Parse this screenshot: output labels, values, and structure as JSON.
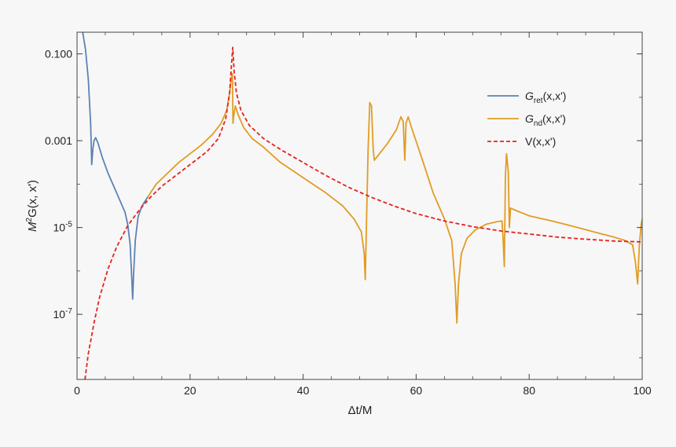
{
  "chart_data": {
    "type": "line",
    "xlabel": "Δt/M",
    "ylabel": {
      "pre": "M",
      "sup": "2",
      "post": "G(x, x')"
    },
    "xlim": [
      0,
      100
    ],
    "ylim_log10": [
      -8.5,
      -0.5
    ],
    "yscale": "log",
    "grid": false,
    "legend_position": "top-right",
    "xticks": [
      0,
      20,
      40,
      60,
      80,
      100
    ],
    "yticks": [
      {
        "exp": -1,
        "label": "0.100"
      },
      {
        "exp": -3,
        "label": "0.001"
      },
      {
        "exp": -5,
        "label": "10",
        "sup": "-5"
      },
      {
        "exp": -7,
        "label": "10",
        "sup": "-7"
      }
    ],
    "series": [
      {
        "name": {
          "main": "G",
          "sub": "ret",
          "tail": "(x,x')"
        },
        "color": "#5e81b5",
        "dash": "solid",
        "points": [
          [
            1.0,
            -0.5
          ],
          [
            1.5,
            -0.9
          ],
          [
            2.0,
            -1.6
          ],
          [
            2.4,
            -2.6
          ],
          [
            2.6,
            -3.55
          ],
          [
            2.8,
            -3.2
          ],
          [
            3.0,
            -3.0
          ],
          [
            3.3,
            -2.93
          ],
          [
            3.7,
            -3.05
          ],
          [
            4.5,
            -3.4
          ],
          [
            5.5,
            -3.75
          ],
          [
            6.5,
            -4.05
          ],
          [
            7.5,
            -4.35
          ],
          [
            8.5,
            -4.65
          ],
          [
            9.0,
            -4.95
          ],
          [
            9.4,
            -5.4
          ],
          [
            9.7,
            -6.2
          ],
          [
            9.85,
            -6.65
          ],
          [
            10.0,
            -6.1
          ],
          [
            10.3,
            -5.3
          ],
          [
            10.8,
            -4.75
          ],
          [
            11.5,
            -4.5
          ],
          [
            12.5,
            -4.3
          ]
        ]
      },
      {
        "name": {
          "main": "G",
          "sub": "nd",
          "tail": "(x,x')"
        },
        "color": "#e19c24",
        "dash": "solid",
        "points": [
          [
            12.5,
            -4.3
          ],
          [
            14,
            -4.0
          ],
          [
            16,
            -3.75
          ],
          [
            18,
            -3.5
          ],
          [
            20,
            -3.3
          ],
          [
            22,
            -3.1
          ],
          [
            24,
            -2.85
          ],
          [
            25.5,
            -2.6
          ],
          [
            26.5,
            -2.3
          ],
          [
            27.0,
            -1.9
          ],
          [
            27.3,
            -1.55
          ],
          [
            27.5,
            -1.45
          ],
          [
            27.6,
            -2.6
          ],
          [
            27.7,
            -2.45
          ],
          [
            28.0,
            -2.2
          ],
          [
            28.5,
            -2.4
          ],
          [
            29.5,
            -2.7
          ],
          [
            31,
            -2.95
          ],
          [
            33,
            -3.15
          ],
          [
            36,
            -3.5
          ],
          [
            40,
            -3.85
          ],
          [
            44,
            -4.2
          ],
          [
            47,
            -4.5
          ],
          [
            49,
            -4.8
          ],
          [
            50.3,
            -5.1
          ],
          [
            50.8,
            -5.6
          ],
          [
            51.0,
            -6.2
          ],
          [
            51.2,
            -5.0
          ],
          [
            51.5,
            -3.2
          ],
          [
            51.8,
            -2.12
          ],
          [
            52.1,
            -2.2
          ],
          [
            52.4,
            -3.2
          ],
          [
            52.6,
            -3.45
          ],
          [
            53.5,
            -3.3
          ],
          [
            55,
            -3.05
          ],
          [
            56.5,
            -2.75
          ],
          [
            57.3,
            -2.45
          ],
          [
            57.7,
            -2.55
          ],
          [
            58.0,
            -3.45
          ],
          [
            58.2,
            -2.6
          ],
          [
            58.6,
            -2.45
          ],
          [
            59.2,
            -2.7
          ],
          [
            61,
            -3.4
          ],
          [
            63,
            -4.2
          ],
          [
            65,
            -4.8
          ],
          [
            66.3,
            -5.3
          ],
          [
            66.9,
            -6.3
          ],
          [
            67.2,
            -7.2
          ],
          [
            67.5,
            -6.3
          ],
          [
            68.0,
            -5.6
          ],
          [
            69.0,
            -5.25
          ],
          [
            70.5,
            -5.05
          ],
          [
            72.5,
            -4.92
          ],
          [
            74.5,
            -4.86
          ],
          [
            75.2,
            -4.85
          ],
          [
            75.4,
            -5.3
          ],
          [
            75.6,
            -5.9
          ],
          [
            75.8,
            -3.8
          ],
          [
            76.0,
            -3.3
          ],
          [
            76.3,
            -3.7
          ],
          [
            76.5,
            -5.0
          ],
          [
            76.7,
            -4.55
          ],
          [
            77.5,
            -4.6
          ],
          [
            80,
            -4.73
          ],
          [
            84,
            -4.85
          ],
          [
            88,
            -4.98
          ],
          [
            92,
            -5.12
          ],
          [
            95,
            -5.22
          ],
          [
            97,
            -5.3
          ],
          [
            98.3,
            -5.4
          ],
          [
            98.8,
            -5.8
          ],
          [
            99.2,
            -6.3
          ],
          [
            99.5,
            -5.4
          ],
          [
            99.8,
            -4.95
          ],
          [
            100,
            -4.8
          ]
        ]
      },
      {
        "name": {
          "main": "V(x,x')",
          "sub": "",
          "tail": ""
        },
        "color": "#e8211f",
        "dash": "dashed",
        "points": [
          [
            1.4,
            -8.5
          ],
          [
            2.0,
            -7.9
          ],
          [
            3.0,
            -7.2
          ],
          [
            4.0,
            -6.6
          ],
          [
            5.5,
            -5.95
          ],
          [
            7.0,
            -5.45
          ],
          [
            9.0,
            -4.95
          ],
          [
            11.0,
            -4.6
          ],
          [
            13.0,
            -4.3
          ],
          [
            15.0,
            -4.05
          ],
          [
            17.0,
            -3.85
          ],
          [
            19.0,
            -3.65
          ],
          [
            21.0,
            -3.45
          ],
          [
            23.0,
            -3.25
          ],
          [
            25.0,
            -2.95
          ],
          [
            26.3,
            -2.5
          ],
          [
            27.0,
            -1.9
          ],
          [
            27.3,
            -1.3
          ],
          [
            27.55,
            -0.85
          ],
          [
            27.8,
            -1.4
          ],
          [
            28.2,
            -1.9
          ],
          [
            29.0,
            -2.3
          ],
          [
            30.5,
            -2.65
          ],
          [
            33,
            -2.95
          ],
          [
            36,
            -3.2
          ],
          [
            40,
            -3.5
          ],
          [
            44,
            -3.8
          ],
          [
            48,
            -4.07
          ],
          [
            52,
            -4.3
          ],
          [
            56,
            -4.5
          ],
          [
            60,
            -4.68
          ],
          [
            65,
            -4.85
          ],
          [
            70,
            -4.98
          ],
          [
            75,
            -5.08
          ],
          [
            80,
            -5.15
          ],
          [
            85,
            -5.22
          ],
          [
            90,
            -5.27
          ],
          [
            95,
            -5.31
          ],
          [
            100,
            -5.33
          ]
        ]
      }
    ]
  }
}
